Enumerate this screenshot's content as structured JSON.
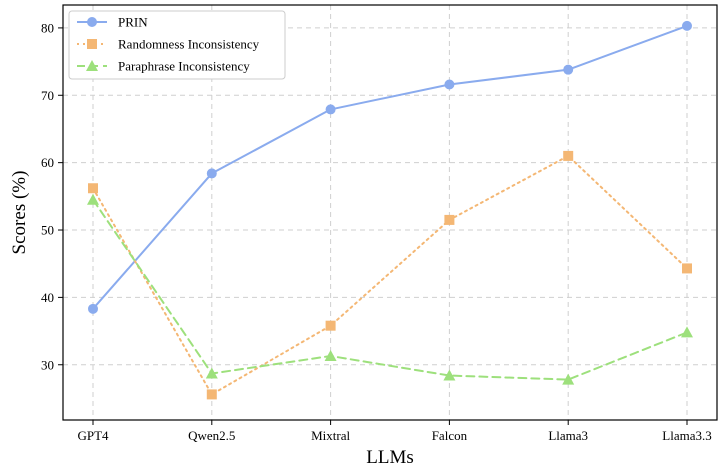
{
  "chart_data": {
    "type": "line",
    "categories": [
      "GPT4",
      "Qwen2.5",
      "Mixtral",
      "Falcon",
      "Llama3",
      "Llama3.3"
    ],
    "series": [
      {
        "name": "PRIN",
        "values": [
          38.3,
          58.4,
          67.9,
          71.6,
          73.8,
          80.3
        ],
        "color": "#8aabee",
        "marker": "circle",
        "line_style": "solid"
      },
      {
        "name": "Randomness Inconsistency",
        "values": [
          56.2,
          25.6,
          35.8,
          51.5,
          61.0,
          44.3
        ],
        "color": "#f4b774",
        "marker": "square",
        "line_style": "dotted"
      },
      {
        "name": "Paraphrase Inconsistency",
        "values": [
          54.5,
          28.7,
          31.3,
          28.4,
          27.8,
          34.8
        ],
        "color": "#9de07c",
        "marker": "triangle",
        "line_style": "dashed"
      }
    ],
    "yticks": [
      30,
      40,
      50,
      60,
      70,
      80
    ],
    "xlabel": "LLMs",
    "ylabel": "Scores (%)",
    "ylim": [
      21.8,
      83.4
    ],
    "grid": true,
    "legend_position": "top-left"
  }
}
